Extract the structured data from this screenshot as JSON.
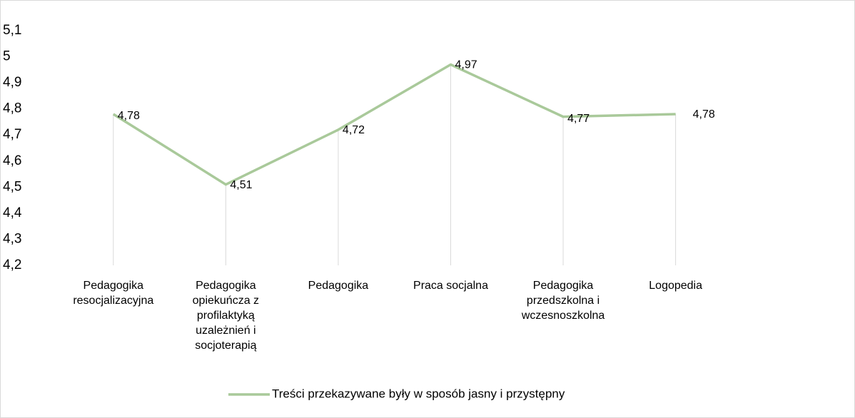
{
  "chart_data": {
    "type": "line",
    "categories": [
      "Pedagogika resocjalizacyjna",
      "Pedagogika opiekuńcza z profilaktyką uzależnień i socjoterapią",
      "Pedagogika",
      "Praca socjalna",
      "Pedagogika przedszkolna i wczesnoszkolna",
      "Logopedia",
      null
    ],
    "series": [
      {
        "name": "Treści przekazywane były w sposób jasny i przystępny",
        "color": "#a9c99a",
        "values": [
          4.78,
          4.51,
          4.72,
          4.97,
          4.77,
          4.78,
          null
        ],
        "value_labels": [
          "4,78",
          "4,51",
          "4,72",
          "4,97",
          "4,77",
          "4,78",
          null
        ]
      }
    ],
    "ylim": [
      4.2,
      5.1
    ],
    "yticks": [
      {
        "value": 4.2,
        "label": "4,2"
      },
      {
        "value": 4.3,
        "label": "4,3"
      },
      {
        "value": 4.4,
        "label": "4,4"
      },
      {
        "value": 4.5,
        "label": "4,5"
      },
      {
        "value": 4.6,
        "label": "4,6"
      },
      {
        "value": 4.7,
        "label": "4,7"
      },
      {
        "value": 4.8,
        "label": "4,8"
      },
      {
        "value": 4.9,
        "label": "4,9"
      },
      5,
      {
        "value": 5.1,
        "label": "5,1"
      }
    ],
    "grid": false,
    "drop_lines": true,
    "legend": "bottom"
  }
}
